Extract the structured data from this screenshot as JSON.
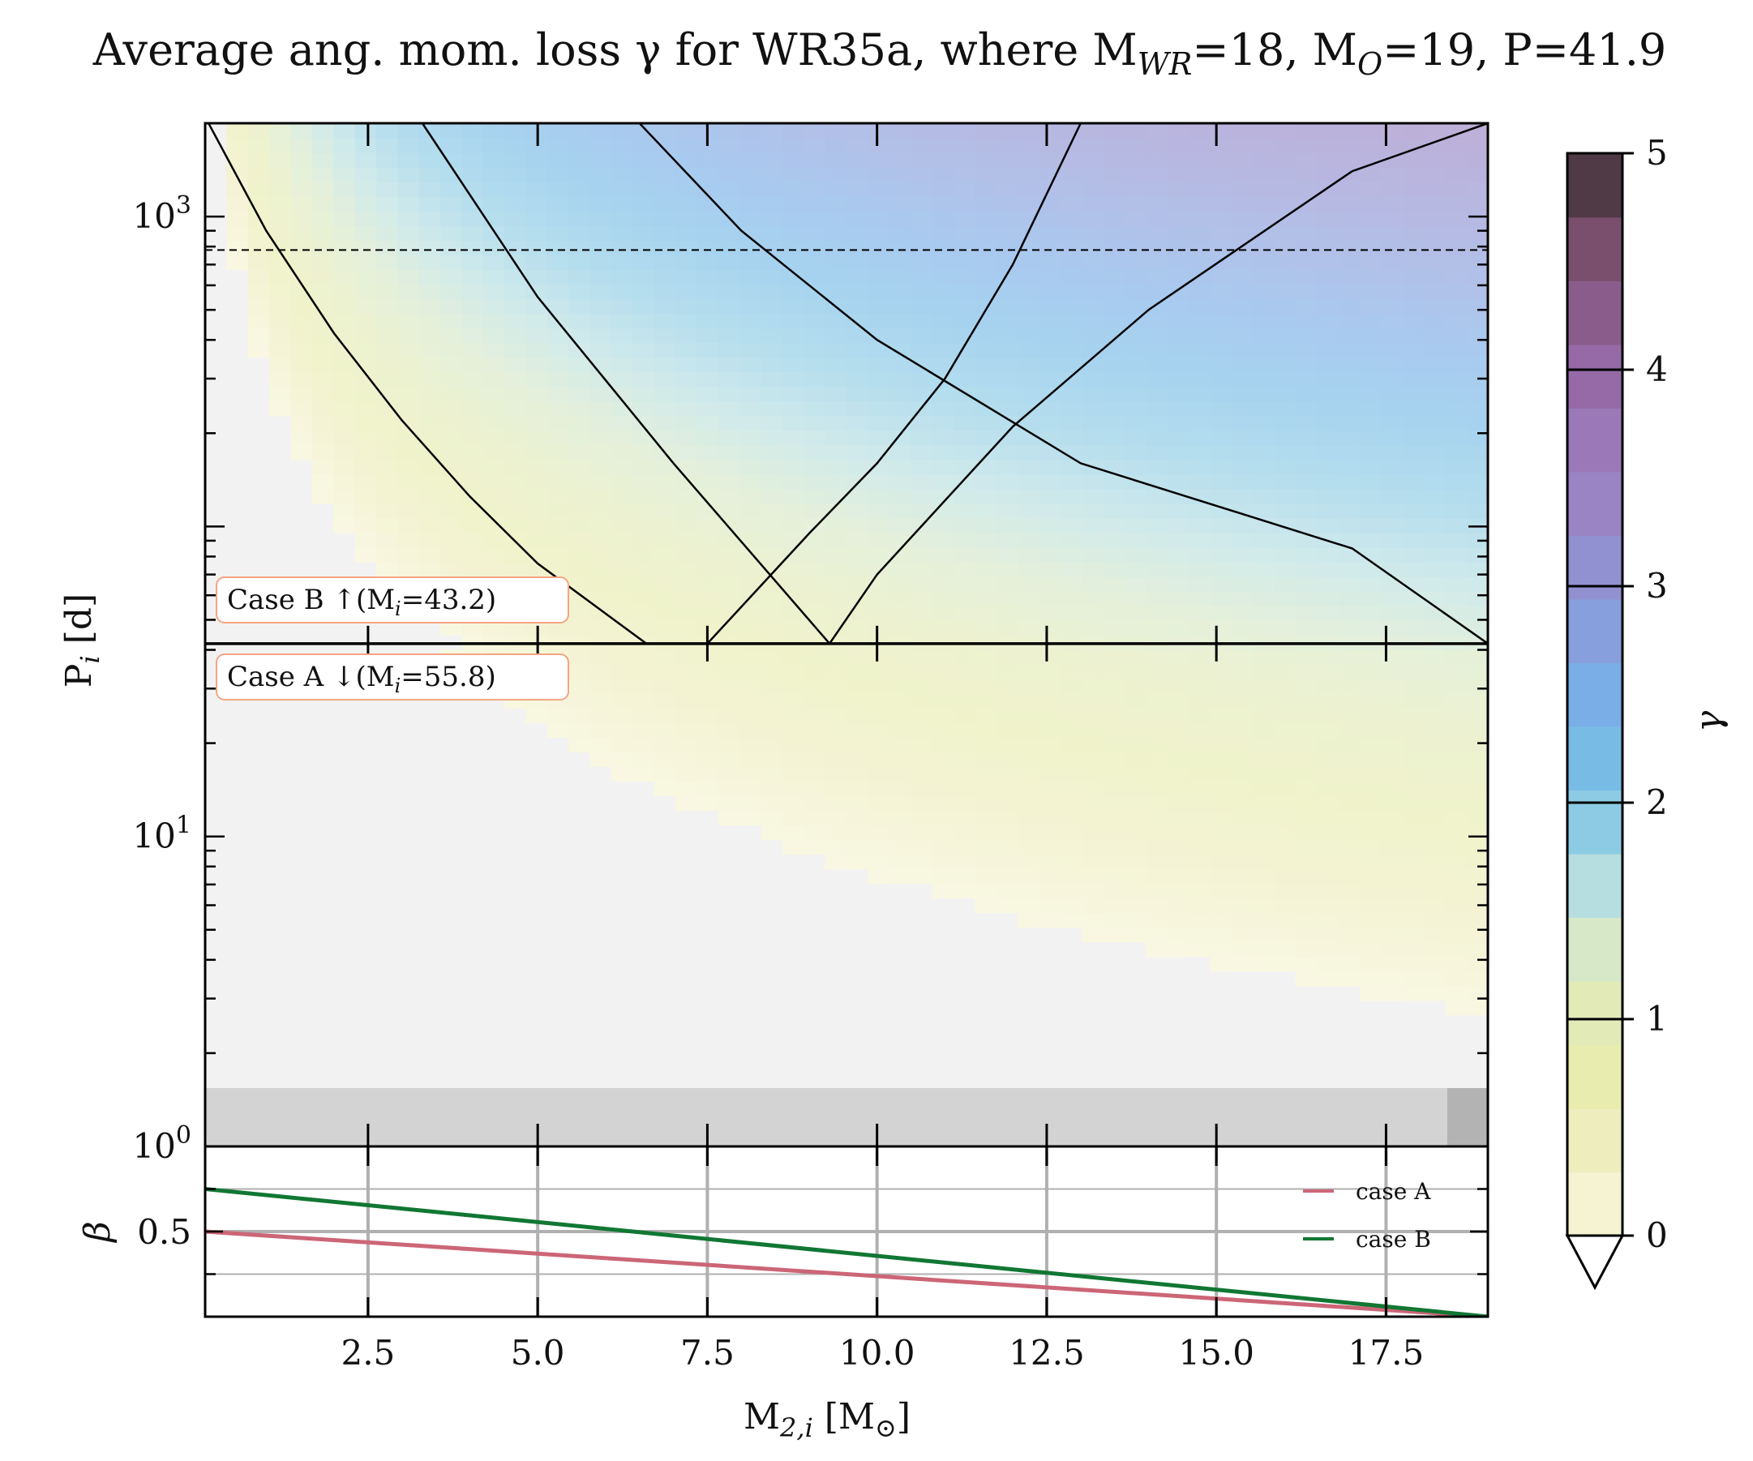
{
  "chart_data": {
    "type": "heatmap",
    "title": "Average ang. mom. loss γ for WR35a, where M",
    "title_parts": {
      "prefix": "Average ang. mom. loss γ for WR35a, where M",
      "wr_sub": "WR",
      "wr_val": "=18, M",
      "o_sub": "O",
      "o_val": "=19, P=41.9"
    },
    "main_panel": {
      "ylabel": "P",
      "ylabel_sub": "i",
      "ylabel_unit": " [d]",
      "yscale": "log",
      "ylim": [
        1,
        2000
      ],
      "xlim": [
        0.1,
        19.0
      ],
      "yticks": [
        {
          "value": 1,
          "label": "10",
          "exp": "0"
        },
        {
          "value": 10,
          "label": "10",
          "exp": "1"
        },
        {
          "value": 1000,
          "label": "10",
          "exp": "3"
        }
      ],
      "case_boundary_period": 41.9,
      "dashed_line_period": 780,
      "case_b_label": "Case B ↑(M",
      "case_b_sub": "i",
      "case_b_val": "=43.2)",
      "case_a_label": "Case A ↓(M",
      "case_a_sub": "i",
      "case_a_val": "=55.8)",
      "gamma_contours": [
        {
          "gamma": 0,
          "case": "B",
          "x": [
            7.5,
            9,
            10,
            11,
            12,
            13
          ],
          "y": [
            41.9,
            95,
            160,
            300,
            700,
            2000
          ]
        },
        {
          "gamma": 1,
          "case": "B",
          "x": [
            9.3,
            10,
            12,
            14,
            17,
            19
          ],
          "y": [
            41.9,
            70,
            210,
            500,
            1400,
            2000
          ]
        },
        {
          "gamma": 0,
          "case": "A",
          "x": [
            0.15,
            1,
            2,
            3,
            4,
            5,
            6.6
          ],
          "y": [
            2000,
            900,
            420,
            220,
            125,
            76,
            41.9
          ]
        },
        {
          "gamma": 1,
          "case": "A",
          "x": [
            3.3,
            5,
            7,
            9.3
          ],
          "y": [
            2000,
            550,
            160,
            41.9
          ]
        },
        {
          "gamma": 2,
          "case": "A",
          "x": [
            6.5,
            8,
            10,
            13,
            17,
            19
          ],
          "y": [
            2000,
            900,
            400,
            160,
            85,
            41.9
          ]
        }
      ]
    },
    "beta_panel": {
      "ylabel": "β",
      "ytick_label": "0.5",
      "ylim": [
        0.3,
        0.7
      ],
      "series": [
        {
          "name": "case A",
          "color": "#cc6677",
          "x": [
            0.1,
            19.0
          ],
          "y": [
            0.5,
            0.3
          ]
        },
        {
          "name": "case B",
          "color": "#117733",
          "x": [
            0.1,
            19.0
          ],
          "y": [
            0.6,
            0.3
          ]
        }
      ]
    },
    "xlabel": "M",
    "xlabel_sub": "2,i",
    "xlabel_unit": " [M",
    "xlabel_sun": "⊙",
    "xlabel_close": "]",
    "xticks": [
      2.5,
      5.0,
      7.5,
      10.0,
      12.5,
      15.0,
      17.5
    ],
    "xtick_labels": [
      "2.5",
      "5.0",
      "7.5",
      "10.0",
      "12.5",
      "15.0",
      "17.5"
    ],
    "colorbar": {
      "label": "γ",
      "range": [
        0,
        5
      ],
      "ticks": [
        "0",
        "1",
        "2",
        "3",
        "4",
        "5"
      ],
      "extend": "min",
      "colors": [
        "#f5f3d2",
        "#eeedbe",
        "#e8ecae",
        "#e2eab8",
        "#d6e8c8",
        "#b6dee0",
        "#8dcbe4",
        "#78bce6",
        "#79aee6",
        "#879fdc",
        "#9190d0",
        "#9a84c3",
        "#9b79b8",
        "#956aa6",
        "#8a5c8b",
        "#7a4e6d",
        "#4f3a45"
      ]
    },
    "legend": {
      "entries": [
        "case A",
        "case B"
      ],
      "position": "upper-right"
    }
  }
}
